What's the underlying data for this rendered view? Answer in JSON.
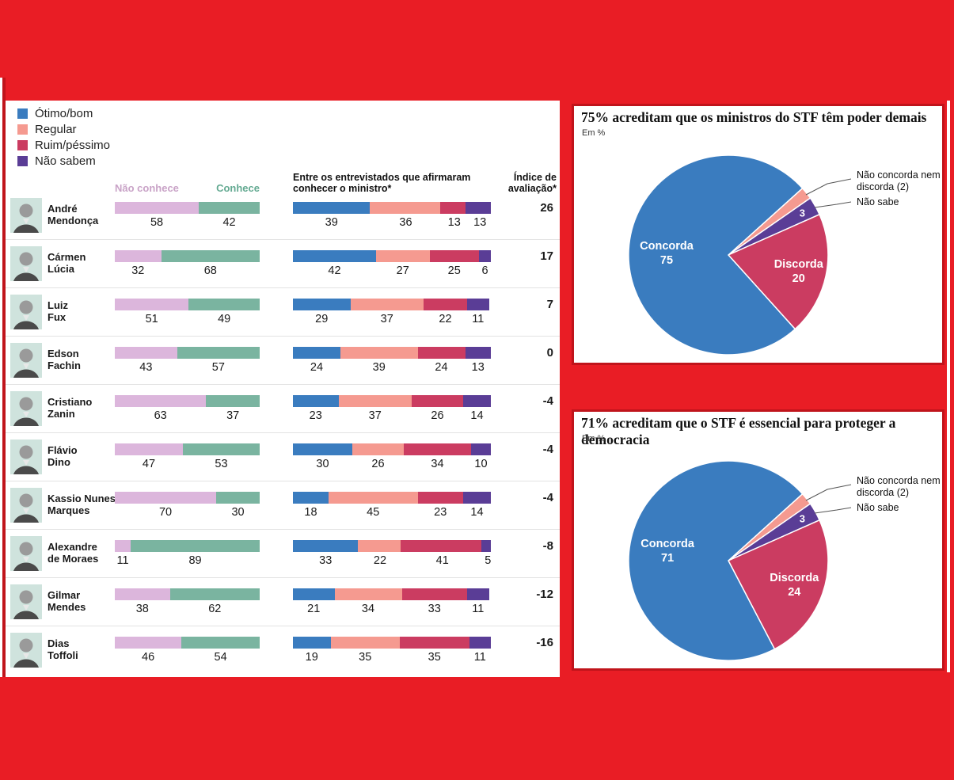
{
  "palette": {
    "background_red": "#e91d25",
    "card_border_red": "#c0141b",
    "blue_otimo": "#3a7cbf",
    "salmon_regular": "#f59a90",
    "crimson_ruim": "#cb3c61",
    "purple_nao_sabem": "#5a3d96",
    "lilac_nao_conhece": "#dcb6dc",
    "teal_conhece": "#7ab4a0",
    "header_nao_conhece_text": "#c9a3c7",
    "header_conhece_text": "#64aa92",
    "photo_background": "#cfe3dd",
    "row_divider": "#e3e3e3"
  },
  "legend": {
    "items": [
      {
        "label": "Ótimo/bom",
        "color": "#3a7cbf"
      },
      {
        "label": "Regular",
        "color": "#f59a90"
      },
      {
        "label": "Ruim/péssimo",
        "color": "#cb3c61"
      },
      {
        "label": "Não sabem",
        "color": "#5a3d96"
      }
    ]
  },
  "chart_data": [
    {
      "type": "bar",
      "subtype": "horizontal-paired-and-stacked",
      "group_headers": [
        "Não conhece",
        "Conhece"
      ],
      "section_header": "Entre os entrevistados que afirmaram conhecer o ministro*",
      "section_header_lines": [
        "Entre os entrevistados que afirmaram",
        "conhecer o ministro*"
      ],
      "index_header": "Índice de avaliação*",
      "index_header_lines": [
        "Índice de",
        "avaliação*"
      ],
      "categories": [
        "André Mendonça",
        "Cármen Lúcia",
        "Luiz Fux",
        "Edson Fachin",
        "Cristiano Zanin",
        "Flávio Dino",
        "Kassio Nunes Marques",
        "Alexandre de Moraes",
        "Gilmar Mendes",
        "Dias Toffoli"
      ],
      "category_lines": [
        [
          "André",
          "Mendonça"
        ],
        [
          "Cármen",
          "Lúcia"
        ],
        [
          "Luiz",
          "Fux"
        ],
        [
          "Edson",
          "Fachin"
        ],
        [
          "Cristiano",
          "Zanin"
        ],
        [
          "Flávio",
          "Dino"
        ],
        [
          "Kassio Nunes",
          "Marques"
        ],
        [
          "Alexandre",
          "de Moraes"
        ],
        [
          "Gilmar",
          "Mendes"
        ],
        [
          "Dias",
          "Toffoli"
        ]
      ],
      "series": [
        {
          "name": "Não conhece",
          "values": [
            58,
            32,
            51,
            43,
            63,
            47,
            70,
            11,
            38,
            46
          ]
        },
        {
          "name": "Conhece",
          "values": [
            42,
            68,
            49,
            57,
            37,
            53,
            30,
            89,
            62,
            54
          ]
        },
        {
          "name": "Ótimo/bom",
          "values": [
            39,
            42,
            29,
            24,
            23,
            30,
            18,
            33,
            21,
            19
          ]
        },
        {
          "name": "Regular",
          "values": [
            36,
            27,
            37,
            39,
            37,
            26,
            45,
            22,
            34,
            35
          ]
        },
        {
          "name": "Ruim/péssimo",
          "values": [
            13,
            25,
            22,
            24,
            26,
            34,
            23,
            41,
            33,
            35
          ]
        },
        {
          "name": "Não sabem",
          "values": [
            13,
            6,
            11,
            13,
            14,
            10,
            14,
            5,
            11,
            11
          ]
        },
        {
          "name": "Índice de avaliação",
          "values": [
            26,
            17,
            7,
            0,
            -4,
            -4,
            -4,
            -8,
            -12,
            -16
          ]
        }
      ]
    },
    {
      "type": "pie",
      "title": "75% acreditam que os ministros do STF têm poder demais",
      "subtitle": "Em %",
      "start_angle_deg": 42,
      "clockwise": true,
      "legend_position": "callouts-right",
      "slices": [
        {
          "label": "Não concorda nem discorda",
          "value": 2,
          "color": "#f59a90"
        },
        {
          "label": "Não sabe",
          "value": 3,
          "color": "#5a3d96",
          "inside": "value",
          "label_pos": 0.85
        },
        {
          "label": "Discorda",
          "value": 20,
          "color": "#cb3c61",
          "inside": "name_value",
          "label_pos": 0.72
        },
        {
          "label": "Concorda",
          "value": 75,
          "color": "#3a7cbf",
          "inside": "name_value",
          "label_pos": 0.62
        }
      ],
      "callouts": [
        {
          "lines": [
            "Não concorda nem",
            "discorda (2)"
          ]
        },
        {
          "lines": [
            "Não sabe"
          ]
        }
      ]
    },
    {
      "type": "pie",
      "title": "71% acreditam que o STF é essencial para proteger a democracia",
      "subtitle": "Em %",
      "start_angle_deg": 42,
      "clockwise": true,
      "legend_position": "callouts-right",
      "slices": [
        {
          "label": "Não concorda nem discorda",
          "value": 2,
          "color": "#f59a90"
        },
        {
          "label": "Não sabe",
          "value": 3,
          "color": "#5a3d96",
          "inside": "value",
          "label_pos": 0.85
        },
        {
          "label": "Discorda",
          "value": 24,
          "color": "#cb3c61",
          "inside": "name_value",
          "label_pos": 0.7
        },
        {
          "label": "Concorda",
          "value": 71,
          "color": "#3a7cbf",
          "inside": "name_value",
          "label_pos": 0.62
        }
      ],
      "callouts": [
        {
          "lines": [
            "Não concorda nem",
            "discorda (2)"
          ]
        },
        {
          "lines": [
            "Não sabe"
          ]
        }
      ]
    }
  ]
}
